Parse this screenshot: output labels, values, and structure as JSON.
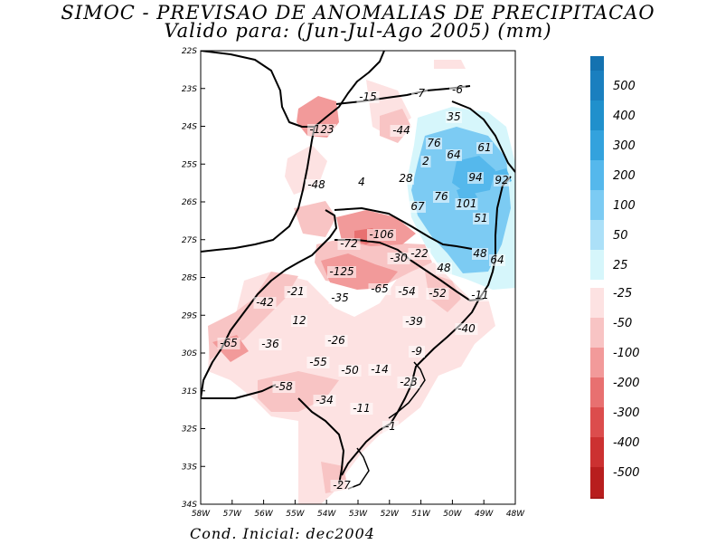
{
  "title": {
    "line1": "SIMOC - PREVISAO DE ANOMALIAS DE PRECIPITACAO",
    "line2": "Valido para: (Jun-Jul-Ago 2005) (mm)"
  },
  "footer": "Cond. Inicial: dec2004",
  "axes": {
    "lat_ticks": [
      "22S",
      "23S",
      "24S",
      "25S",
      "26S",
      "27S",
      "28S",
      "29S",
      "30S",
      "31S",
      "32S",
      "33S",
      "34S"
    ],
    "lon_ticks": [
      "58W",
      "57W",
      "56W",
      "55W",
      "54W",
      "53W",
      "52W",
      "51W",
      "50W",
      "49W",
      "48W"
    ]
  },
  "colorbar": {
    "positive": [
      {
        "label": "500",
        "color": "#1a7fbf"
      },
      {
        "label": "400",
        "color": "#2090cc"
      },
      {
        "label": "300",
        "color": "#33a2dd"
      },
      {
        "label": "200",
        "color": "#55b8ec"
      },
      {
        "label": "100",
        "color": "#7ccbf3"
      },
      {
        "label": "50",
        "color": "#ace0f8"
      },
      {
        "label": "25",
        "color": "#d6f6fb"
      }
    ],
    "negative": [
      {
        "label": "-25",
        "color": "#fde2e2"
      },
      {
        "label": "-50",
        "color": "#f8c4c4"
      },
      {
        "label": "-100",
        "color": "#f29a9a"
      },
      {
        "label": "-200",
        "color": "#e87070"
      },
      {
        "label": "-300",
        "color": "#dc4d4d"
      },
      {
        "label": "-400",
        "color": "#cc3131"
      },
      {
        "label": "-500",
        "color": "#b81e1e"
      }
    ],
    "top_cap_color": "#1472b0",
    "bottom_cap_color": "#a61a1a"
  },
  "contour_labels": [
    "-15",
    "-7",
    "-6",
    "-123",
    "-44",
    "35",
    "76",
    "61",
    "64",
    "2",
    "94",
    "92",
    "-48",
    "4",
    "28",
    "76",
    "101",
    "67",
    "51",
    "-106",
    "-72",
    "-22",
    "48",
    "64",
    "-30",
    "48",
    "-125",
    "-21",
    "-65",
    "-54",
    "-52",
    "-11",
    "-35",
    "-42",
    "12",
    "-39",
    "-40",
    "-26",
    "-65",
    "-36",
    "-9",
    "-55",
    "-50",
    "-14",
    "-58",
    "-23",
    "-34",
    "-11",
    "-1",
    "-27"
  ]
}
